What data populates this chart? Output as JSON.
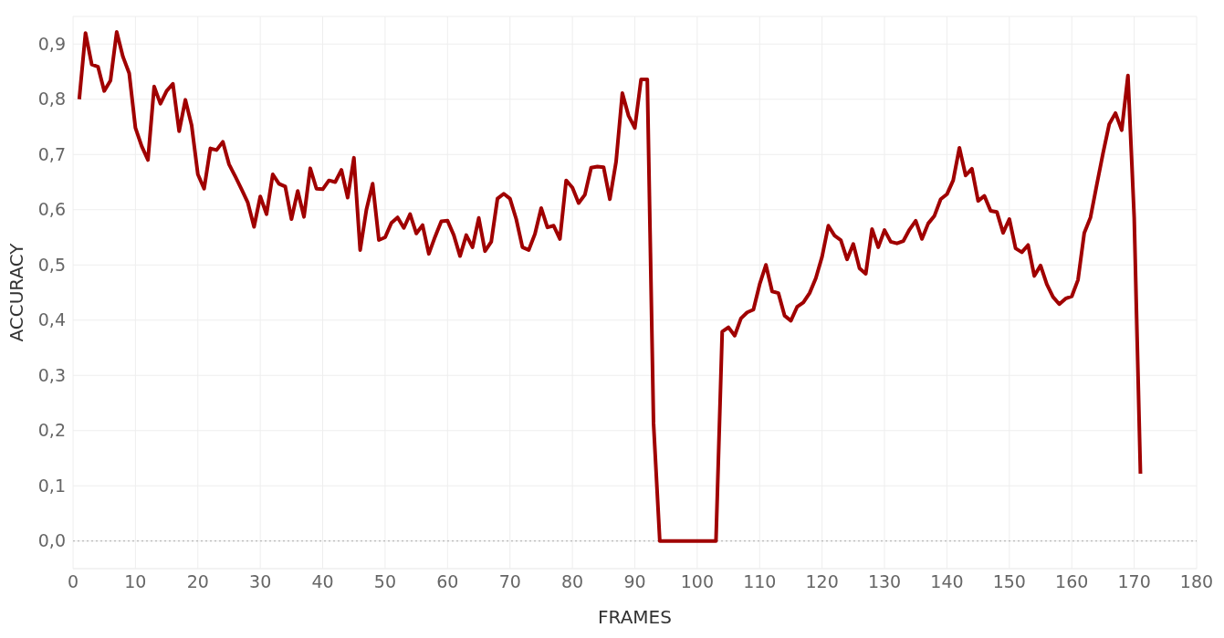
{
  "chart_data": {
    "type": "line",
    "xlabel": "FRAMES",
    "ylabel": "ACCURACY",
    "x": [
      1,
      2,
      3,
      4,
      5,
      6,
      7,
      8,
      9,
      10,
      11,
      12,
      13,
      14,
      15,
      16,
      17,
      18,
      19,
      20,
      21,
      22,
      23,
      24,
      25,
      26,
      27,
      28,
      29,
      30,
      31,
      32,
      33,
      34,
      35,
      36,
      37,
      38,
      39,
      40,
      41,
      42,
      43,
      44,
      45,
      46,
      47,
      48,
      49,
      50,
      51,
      52,
      53,
      54,
      55,
      56,
      57,
      58,
      59,
      60,
      61,
      62,
      63,
      64,
      65,
      66,
      67,
      68,
      69,
      70,
      71,
      72,
      73,
      74,
      75,
      76,
      77,
      78,
      79,
      80,
      81,
      82,
      83,
      84,
      85,
      86,
      87,
      88,
      89,
      90,
      91,
      92,
      93,
      94,
      95,
      96,
      97,
      98,
      99,
      100,
      101,
      102,
      103,
      104,
      105,
      106,
      107,
      108,
      109,
      110,
      111,
      112,
      113,
      114,
      115,
      116,
      117,
      118,
      119,
      120,
      121,
      122,
      123,
      124,
      125,
      126,
      127,
      128,
      129,
      130,
      131,
      132,
      133,
      134,
      135,
      136,
      137,
      138,
      139,
      140,
      141,
      142,
      143,
      144,
      145,
      146,
      147,
      148,
      149,
      150,
      151,
      152,
      153,
      154,
      155,
      156,
      157,
      158,
      159,
      160,
      161,
      162,
      163,
      164,
      165,
      166,
      167,
      168,
      169,
      170,
      171
    ],
    "series": [
      {
        "color": "#a00000",
        "values": [
          0.8,
          0.92,
          0.863,
          0.859,
          0.815,
          0.834,
          0.922,
          0.877,
          0.847,
          0.748,
          0.715,
          0.69,
          0.823,
          0.792,
          0.815,
          0.828,
          0.742,
          0.799,
          0.753,
          0.664,
          0.638,
          0.711,
          0.708,
          0.723,
          0.682,
          0.66,
          0.637,
          0.613,
          0.569,
          0.624,
          0.592,
          0.664,
          0.647,
          0.642,
          0.583,
          0.634,
          0.587,
          0.675,
          0.638,
          0.637,
          0.653,
          0.65,
          0.672,
          0.622,
          0.694,
          0.527,
          0.6,
          0.647,
          0.545,
          0.55,
          0.576,
          0.586,
          0.567,
          0.592,
          0.557,
          0.572,
          0.52,
          0.551,
          0.579,
          0.58,
          0.554,
          0.516,
          0.554,
          0.532,
          0.585,
          0.525,
          0.542,
          0.62,
          0.629,
          0.62,
          0.583,
          0.532,
          0.527,
          0.556,
          0.603,
          0.568,
          0.571,
          0.547,
          0.653,
          0.64,
          0.612,
          0.627,
          0.676,
          0.678,
          0.677,
          0.619,
          0.687,
          0.811,
          0.77,
          0.748,
          0.836,
          0.836,
          0.213,
          0,
          0,
          0,
          0,
          0,
          0,
          0,
          0,
          0,
          0,
          0.379,
          0.387,
          0.372,
          0.403,
          0.414,
          0.419,
          0.465,
          0.5,
          0.452,
          0.449,
          0.408,
          0.399,
          0.424,
          0.432,
          0.449,
          0.476,
          0.515,
          0.571,
          0.553,
          0.545,
          0.51,
          0.538,
          0.494,
          0.484,
          0.565,
          0.532,
          0.563,
          0.542,
          0.539,
          0.543,
          0.564,
          0.58,
          0.547,
          0.575,
          0.589,
          0.619,
          0.628,
          0.653,
          0.712,
          0.662,
          0.674,
          0.616,
          0.625,
          0.598,
          0.596,
          0.558,
          0.583,
          0.53,
          0.523,
          0.536,
          0.48,
          0.499,
          0.465,
          0.442,
          0.429,
          0.439,
          0.443,
          0.473,
          0.558,
          0.586,
          0.645,
          0.702,
          0.755,
          0.775,
          0.744,
          0.843,
          0.586,
          0.122
        ]
      }
    ],
    "xlim": [
      0,
      180
    ],
    "xticks": [
      0,
      10,
      20,
      30,
      40,
      50,
      60,
      70,
      80,
      90,
      100,
      110,
      120,
      130,
      140,
      150,
      160,
      170,
      180
    ],
    "ylim": [
      -0.05,
      0.95
    ],
    "yticks": [
      {
        "value": 0,
        "label": "0,0"
      },
      {
        "value": 0.1,
        "label": "0,1"
      },
      {
        "value": 0.2,
        "label": "0,2"
      },
      {
        "value": 0.3,
        "label": "0,3"
      },
      {
        "value": 0.4,
        "label": "0,4"
      },
      {
        "value": 0.5,
        "label": "0,5"
      },
      {
        "value": 0.6,
        "label": "0,6"
      },
      {
        "value": 0.7,
        "label": "0,7"
      },
      {
        "value": 0.8,
        "label": "0,8"
      },
      {
        "value": 0.9,
        "label": "0,9"
      }
    ],
    "grid": true,
    "line_style": "solid",
    "ref_lines": [
      {
        "axis": "y",
        "value": 0,
        "color": "#aaaaaa",
        "line_style": "dotted"
      }
    ]
  }
}
